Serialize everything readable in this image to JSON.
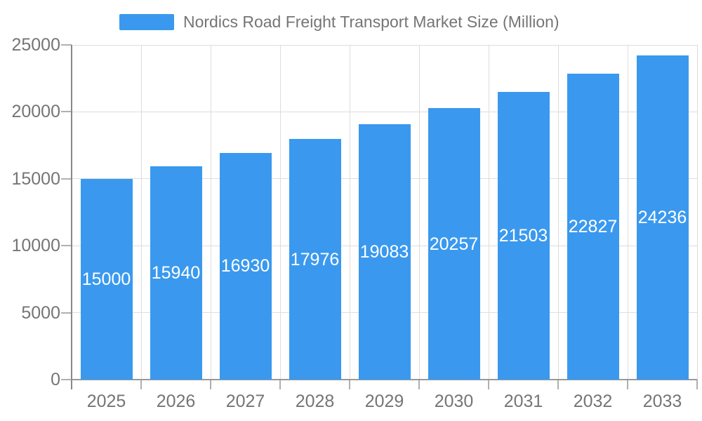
{
  "legend": {
    "label": "Nordics Road Freight Transport Market Size (Million)"
  },
  "chart_data": {
    "type": "bar",
    "title": "Nordics Road Freight Transport Market Size (Million)",
    "categories": [
      "2025",
      "2026",
      "2027",
      "2028",
      "2029",
      "2030",
      "2031",
      "2032",
      "2033"
    ],
    "values": [
      15000,
      15940,
      16930,
      17976,
      19083,
      20257,
      21503,
      22827,
      24236
    ],
    "series": [
      {
        "name": "Nordics Road Freight Transport Market Size (Million)",
        "values": [
          15000,
          15940,
          16930,
          17976,
          19083,
          20257,
          21503,
          22827,
          24236
        ]
      }
    ],
    "xlabel": "",
    "ylabel": "",
    "ylim": [
      0,
      25000
    ],
    "yticks": [
      0,
      5000,
      10000,
      15000,
      20000,
      25000
    ],
    "grid": true,
    "legend_position": "top",
    "bar_labels_inside": true,
    "colors": {
      "bar": "#3A99EE",
      "grid": "#DDDDDD",
      "y_axis": "#888888",
      "x_axis": "#999999",
      "tick": "#B0B0B0",
      "text": "#757575",
      "bar_label": "#FFFFFF",
      "background": "#FFFFFF"
    }
  }
}
